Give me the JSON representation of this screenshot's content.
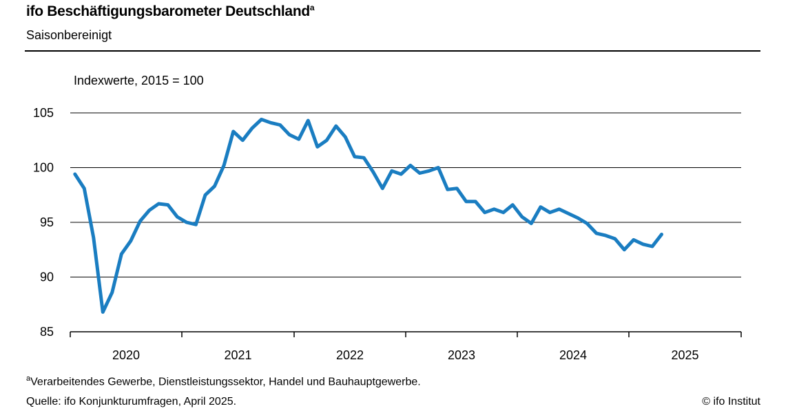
{
  "header": {
    "title": "ifo Beschäftigungsbarometer Deutschland",
    "title_superscript": "a",
    "subtitle": "Saisonbereinigt"
  },
  "footer": {
    "footnote_marker": "a",
    "footnote": "Verarbeitendes Gewerbe, Dienstleistungssektor, Handel und Bauhauptgewerbe.",
    "source": "Quelle: ifo Konjunkturumfragen, April 2025.",
    "copyright": "© ifo Institut"
  },
  "chart_data": {
    "type": "line",
    "title": "ifo Beschäftigungsbarometer Deutschland",
    "subtitle": "Saisonbereinigt",
    "ylabel": "Indexwerte, 2015 = 100",
    "xlabel": "",
    "ylim": [
      85,
      105
    ],
    "yticks": [
      85,
      90,
      95,
      100,
      105
    ],
    "xlim": [
      "2020-01",
      "2025-12"
    ],
    "x_tick_labels": [
      "2020",
      "2021",
      "2022",
      "2023",
      "2024",
      "2025"
    ],
    "grid": "horizontal",
    "legend": "none",
    "colors": {
      "line": "#1a7dc1",
      "grid": "#000000"
    },
    "series": [
      {
        "x": [
          "2020-01",
          "2020-02",
          "2020-03",
          "2020-04",
          "2020-05",
          "2020-06",
          "2020-07",
          "2020-08",
          "2020-09",
          "2020-10",
          "2020-11",
          "2020-12",
          "2021-01",
          "2021-02",
          "2021-03",
          "2021-04",
          "2021-05",
          "2021-06",
          "2021-07",
          "2021-08",
          "2021-09",
          "2021-10",
          "2021-11",
          "2021-12",
          "2022-01",
          "2022-02",
          "2022-03",
          "2022-04",
          "2022-05",
          "2022-06",
          "2022-07",
          "2022-08",
          "2022-09",
          "2022-10",
          "2022-11",
          "2022-12",
          "2023-01",
          "2023-02",
          "2023-03",
          "2023-04",
          "2023-05",
          "2023-06",
          "2023-07",
          "2023-08",
          "2023-09",
          "2023-10",
          "2023-11",
          "2023-12",
          "2024-01",
          "2024-02",
          "2024-03",
          "2024-04",
          "2024-05",
          "2024-06",
          "2024-07",
          "2024-08",
          "2024-09",
          "2024-10",
          "2024-11",
          "2024-12",
          "2025-01",
          "2025-02",
          "2025-03",
          "2025-04"
        ],
        "values": [
          99.4,
          98.1,
          93.6,
          86.8,
          88.6,
          92.1,
          93.3,
          95.1,
          96.1,
          96.7,
          96.6,
          95.5,
          95.0,
          94.8,
          97.5,
          98.3,
          100.2,
          103.3,
          102.5,
          103.6,
          104.4,
          104.1,
          103.9,
          103.0,
          102.6,
          104.3,
          101.9,
          102.5,
          103.8,
          102.8,
          101.0,
          100.9,
          99.6,
          98.1,
          99.7,
          99.4,
          100.2,
          99.5,
          99.7,
          100.0,
          98.0,
          98.1,
          96.9,
          96.9,
          95.9,
          96.2,
          95.9,
          96.6,
          95.5,
          94.9,
          96.4,
          95.9,
          96.2,
          95.8,
          95.4,
          94.9,
          94.0,
          93.8,
          93.5,
          92.5,
          93.4,
          93.0,
          92.8,
          93.9
        ]
      }
    ]
  }
}
